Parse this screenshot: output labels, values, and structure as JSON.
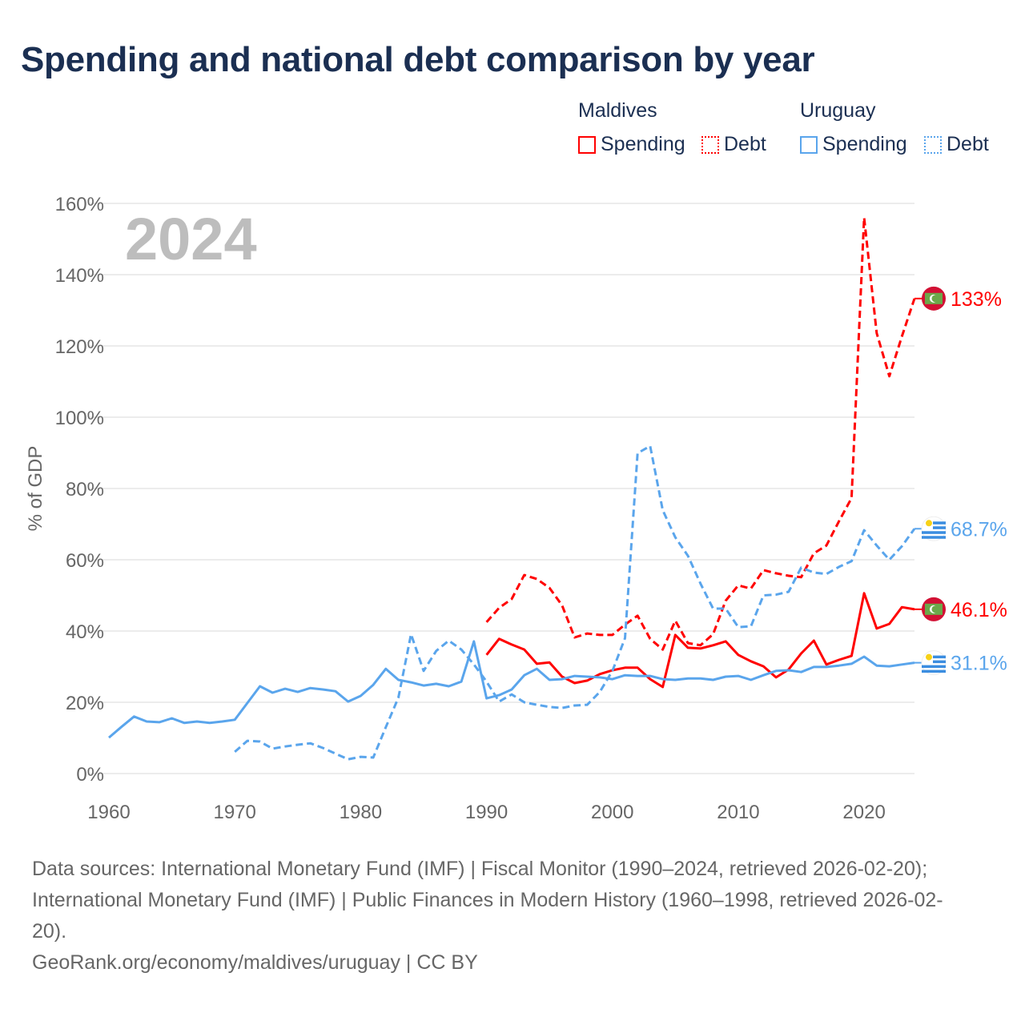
{
  "title": "Spending and national debt comparison by year",
  "legend": {
    "groups": [
      {
        "name": "Maldives",
        "color": "#ff0000",
        "items": [
          "Spending",
          "Debt"
        ]
      },
      {
        "name": "Uruguay",
        "color": "#5aa5ec",
        "items": [
          "Spending",
          "Debt"
        ]
      }
    ]
  },
  "footer": {
    "line1": "Data sources: International Monetary Fund (IMF) | Fiscal Monitor (1990–2024, retrieved 2026-02-20);",
    "line2": "International Monetary Fund (IMF) | Public Finances in Modern History (1960–1998, retrieved 2026-02-",
    "line3": "20).",
    "line4": "GeoRank.org/economy/maldives/uruguay | CC BY"
  },
  "chart_data": {
    "type": "line",
    "title": "Spending and national debt comparison by year",
    "year_watermark": "2024",
    "xlabel": "",
    "ylabel": "% of GDP",
    "xlim": [
      1960,
      2024
    ],
    "ylim": [
      0,
      160
    ],
    "x_ticks": [
      "1960",
      "1970",
      "1980",
      "1990",
      "2000",
      "2010",
      "2020"
    ],
    "y_ticks": [
      "0%",
      "20%",
      "40%",
      "60%",
      "80%",
      "100%",
      "120%",
      "140%",
      "160%"
    ],
    "grid": true,
    "legend_position": "top-right",
    "series": [
      {
        "name": "Maldives Spending",
        "country": "Maldives",
        "style": "solid",
        "color": "#ff0000",
        "end_label": "46.1%",
        "start_year": 1990,
        "values": [
          33.3,
          37.8,
          36.2,
          34.8,
          30.8,
          31.2,
          27.2,
          25.4,
          26.1,
          27.9,
          29.0,
          29.7,
          29.7,
          26.5,
          24.3,
          38.9,
          35.3,
          35.1,
          36.0,
          37.1,
          33.3,
          31.5,
          30.1,
          27.0,
          29.2,
          33.7,
          37.3,
          30.6,
          31.9,
          33.0,
          50.6,
          40.7,
          42.0,
          46.7,
          46.1
        ]
      },
      {
        "name": "Maldives Debt",
        "country": "Maldives",
        "style": "dashed",
        "color": "#ff0000",
        "end_label": "133%",
        "start_year": 1990,
        "values": [
          42.5,
          46.5,
          49.0,
          55.7,
          54.6,
          52.1,
          47.2,
          38.2,
          39.3,
          38.9,
          38.9,
          41.8,
          44.3,
          37.8,
          34.8,
          42.9,
          36.6,
          36.0,
          39.1,
          48.5,
          52.8,
          51.9,
          57.1,
          56.2,
          55.5,
          55.1,
          61.8,
          64.0,
          70.8,
          77.3,
          156.0,
          123.6,
          111.5,
          122.7,
          133.3
        ]
      },
      {
        "name": "Uruguay Spending",
        "country": "Uruguay",
        "style": "solid",
        "color": "#5aa5ec",
        "end_label": "31.1%",
        "start_year": 1960,
        "values": [
          10.1,
          13.1,
          16.0,
          14.6,
          14.4,
          15.5,
          14.2,
          14.6,
          14.2,
          14.6,
          15.1,
          19.8,
          24.5,
          22.7,
          23.8,
          22.9,
          24.0,
          23.6,
          23.1,
          20.2,
          21.8,
          24.9,
          29.4,
          26.3,
          25.6,
          24.7,
          25.2,
          24.5,
          25.8,
          37.1,
          21.1,
          22.0,
          23.6,
          27.6,
          29.4,
          26.3,
          26.5,
          27.4,
          27.2,
          27.0,
          26.5,
          27.6,
          27.4,
          27.4,
          26.5,
          26.3,
          26.7,
          26.7,
          26.3,
          27.2,
          27.4,
          26.3,
          27.6,
          28.8,
          29.0,
          28.5,
          29.9,
          29.9,
          30.3,
          30.8,
          32.8,
          30.3,
          30.1,
          30.6,
          31.1
        ]
      },
      {
        "name": "Uruguay Debt",
        "country": "Uruguay",
        "style": "dashed",
        "color": "#5aa5ec",
        "end_label": "68.7%",
        "start_year": 1970,
        "values": [
          6.1,
          9.2,
          9.0,
          7.0,
          7.6,
          8.1,
          8.5,
          7.2,
          5.6,
          4.0,
          4.7,
          4.5,
          13.0,
          21.3,
          39.1,
          28.8,
          34.4,
          37.3,
          34.8,
          30.6,
          25.8,
          20.2,
          22.2,
          20.0,
          19.3,
          18.7,
          18.4,
          19.1,
          19.3,
          22.9,
          28.8,
          38.0,
          89.9,
          91.9,
          73.9,
          66.3,
          61.1,
          53.3,
          46.3,
          46.3,
          41.1,
          41.3,
          50.0,
          50.2,
          51.0,
          57.8,
          56.4,
          56.0,
          58.0,
          59.6,
          68.3,
          64.0,
          60.0,
          63.8,
          68.7
        ]
      }
    ]
  }
}
